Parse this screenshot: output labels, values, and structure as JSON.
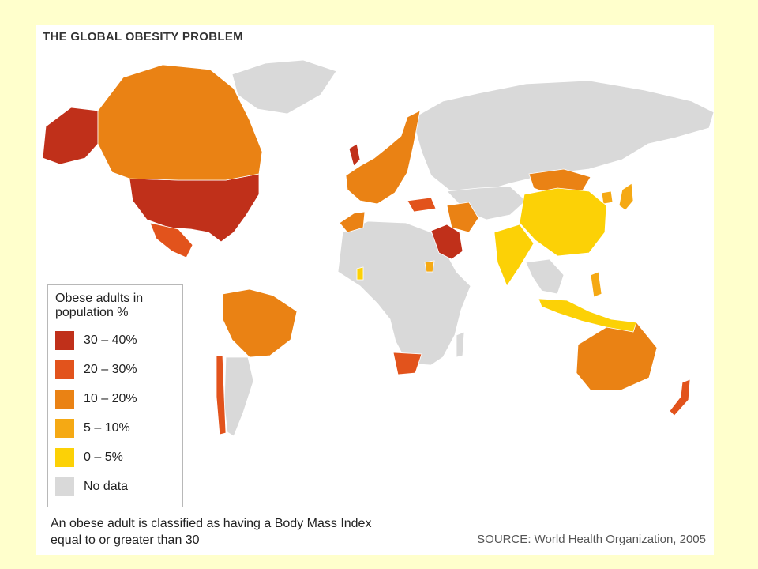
{
  "title": "THE GLOBAL OBESITY PROBLEM",
  "legend": {
    "title": "Obese adults in population %",
    "items": [
      {
        "label": "30 – 40%",
        "color": "#c0301a"
      },
      {
        "label": "20 – 30%",
        "color": "#e2531c"
      },
      {
        "label": "10 – 20%",
        "color": "#ea8214"
      },
      {
        "label": "5 – 10%",
        "color": "#f5a914"
      },
      {
        "label": "0 – 5%",
        "color": "#fcd106"
      },
      {
        "label": "No data",
        "color": "#d9d9d9"
      }
    ]
  },
  "footnote": "An obese adult is classified as having a Body Mass Index equal to or greater than 30",
  "source": "SOURCE: World Health Organization, 2005"
}
